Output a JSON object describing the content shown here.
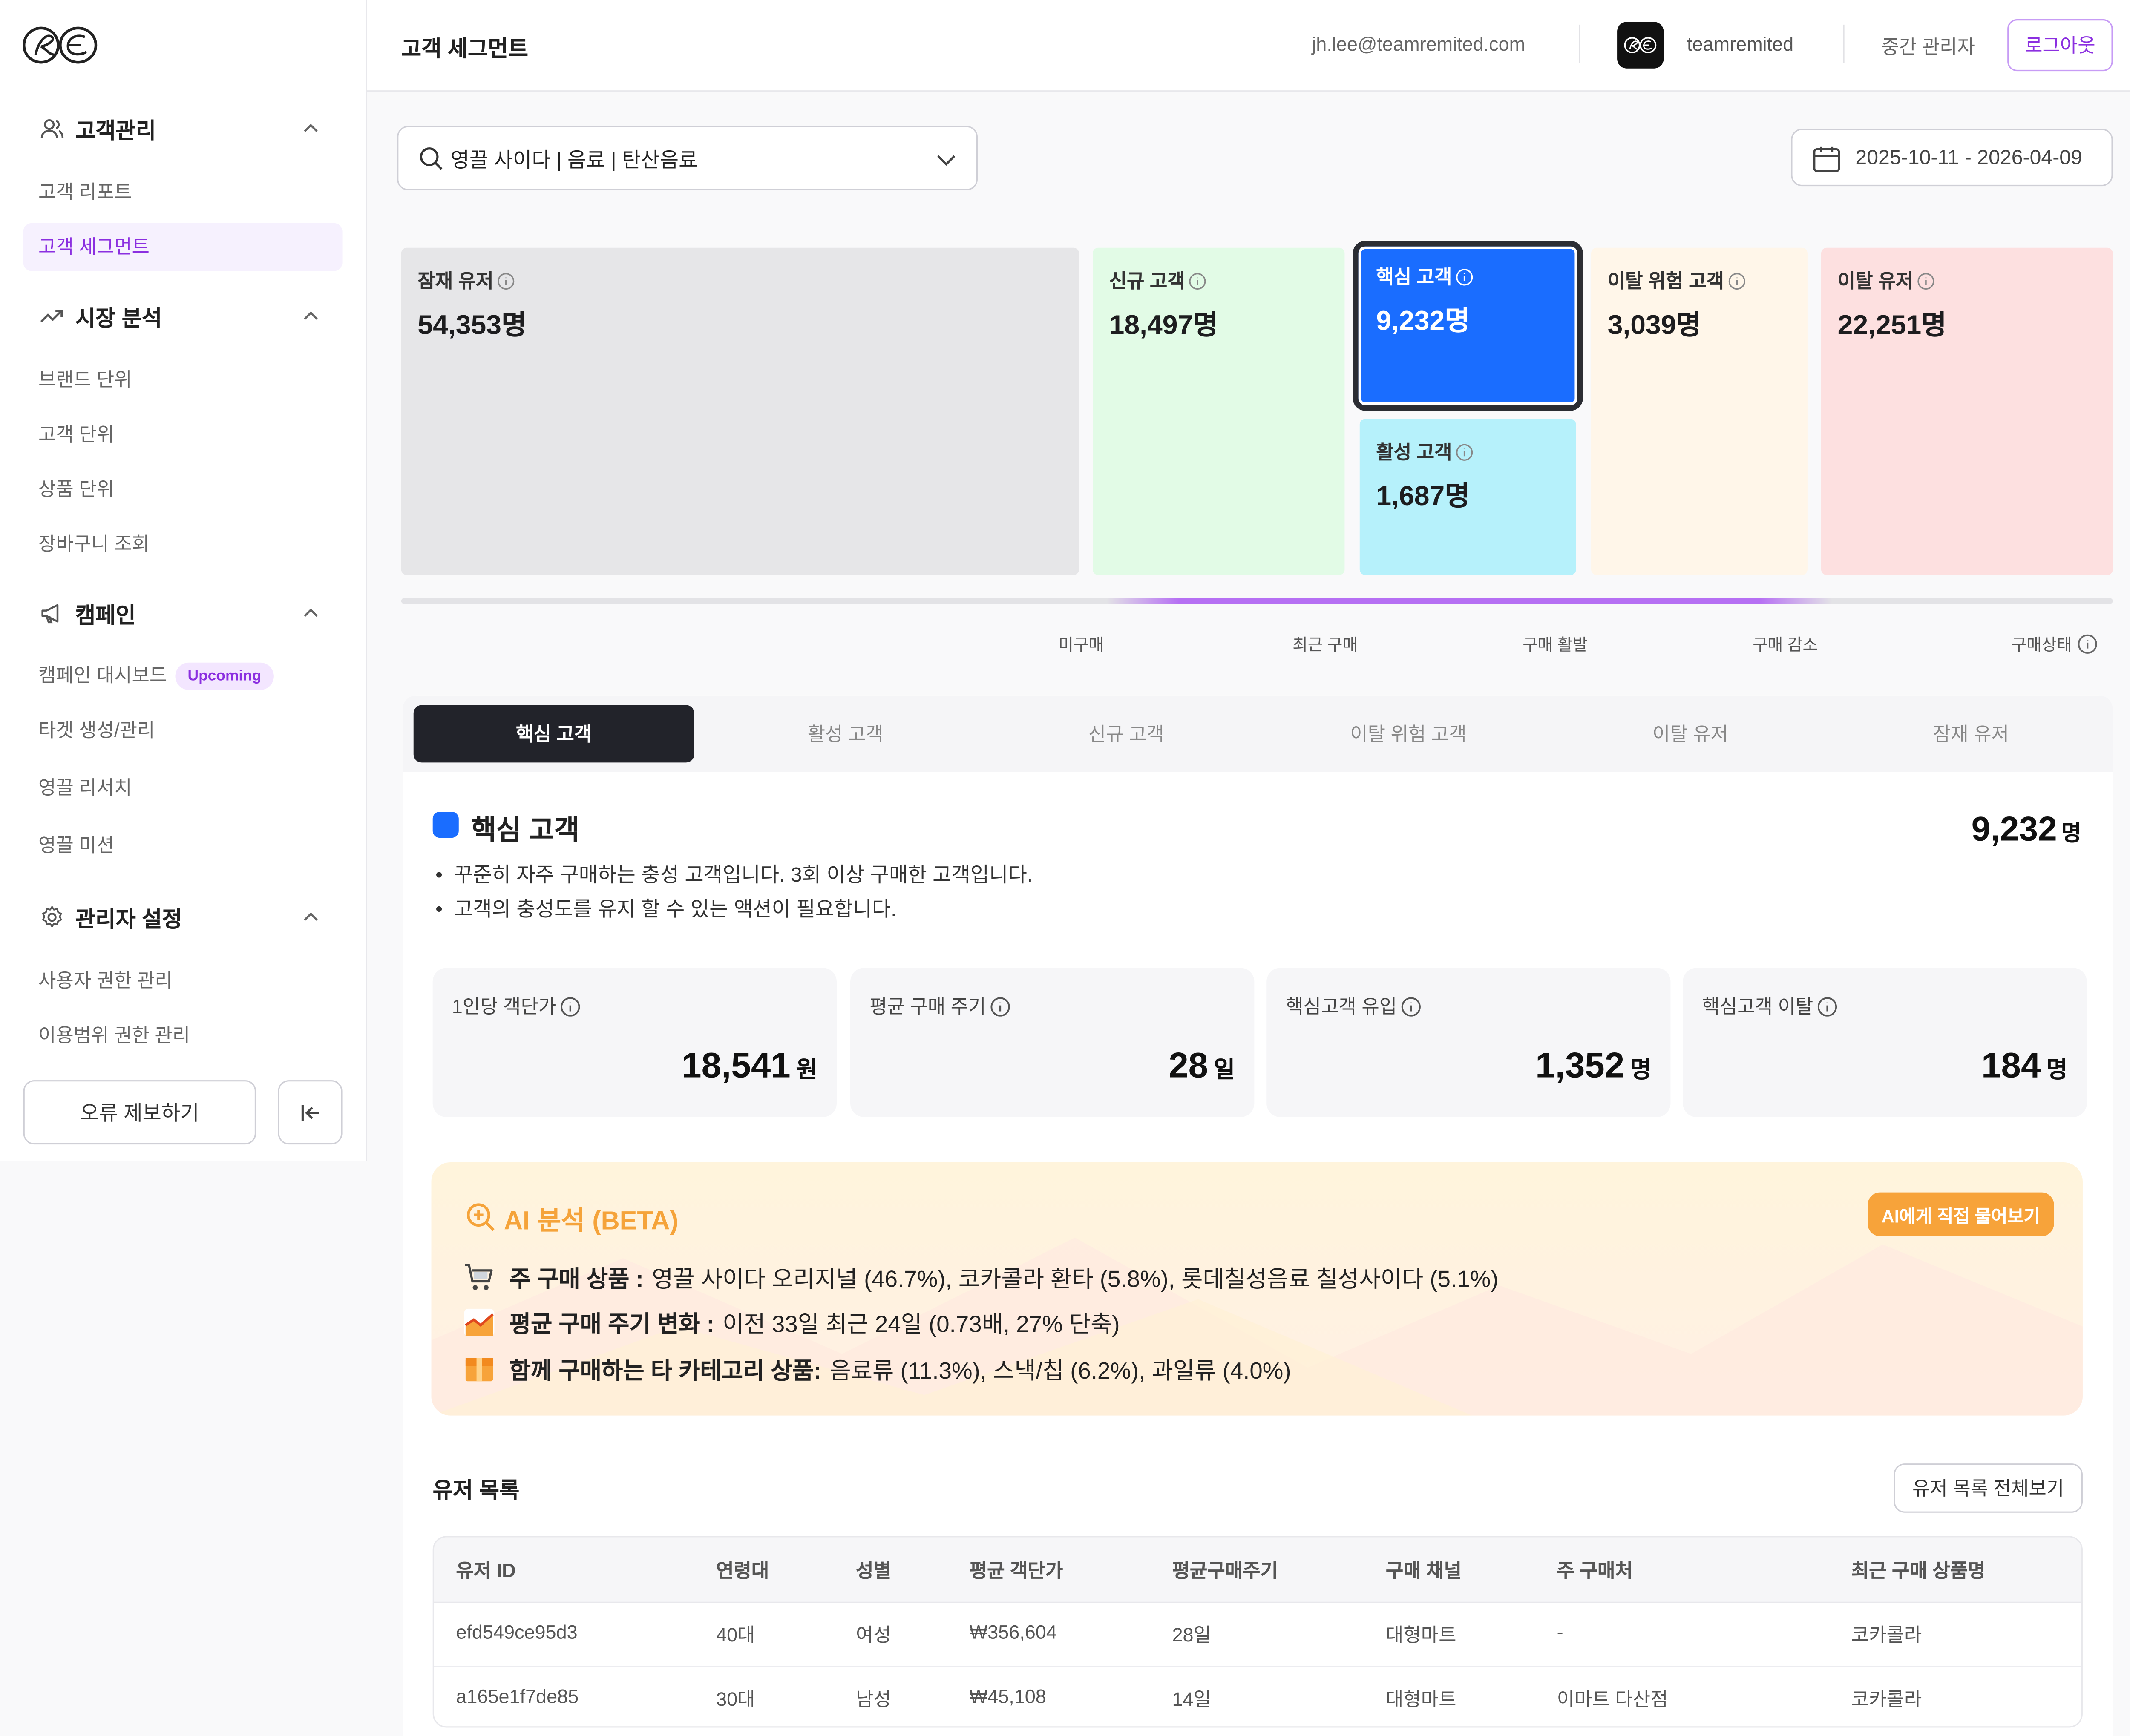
{
  "sidebar": {
    "sections": [
      {
        "title": "고객관리",
        "items": [
          "고객 리포트",
          "고객 세그먼트"
        ]
      },
      {
        "title": "시장 분석",
        "items": [
          "브랜드 단위",
          "고객 단위",
          "상품 단위",
          "장바구니 조회"
        ]
      },
      {
        "title": "캠페인",
        "items": [
          "캠페인 대시보드",
          "타겟 생성/관리",
          "영끌 리서치",
          "영끌 미션"
        ]
      },
      {
        "title": "관리자 설정",
        "items": [
          "사용자 권한 관리",
          "이용범위 권한 관리"
        ]
      }
    ],
    "badge": "Upcoming",
    "report_button": "오류 제보하기"
  },
  "header": {
    "title": "고객 세그먼트",
    "email": "jh.lee@teamremited.com",
    "org": "teamremited",
    "role": "중간 관리자",
    "logout": "로그아웃"
  },
  "filter": {
    "category": "영끌 사이다 | 음료 | 탄산음료",
    "date_range": "2025-10-11 - 2026-04-09"
  },
  "segments": {
    "potential": {
      "label": "잠재 유저",
      "value": "54,353명"
    },
    "new": {
      "label": "신규 고객",
      "value": "18,497명"
    },
    "core": {
      "label": "핵심 고객",
      "value": "9,232명"
    },
    "active": {
      "label": "활성 고객",
      "value": "1,687명"
    },
    "at_risk": {
      "label": "이탈 위험 고객",
      "value": "3,039명"
    },
    "churned": {
      "label": "이탈 유저",
      "value": "22,251명"
    }
  },
  "stages": [
    "미구매",
    "최근 구매",
    "구매 활발",
    "구매 감소",
    "구매상태"
  ],
  "tabs": [
    "핵심 고객",
    "활성 고객",
    "신규 고객",
    "이탈 위험 고객",
    "이탈 유저",
    "잠재 유저"
  ],
  "detail": {
    "title": "핵심 고객",
    "count": "9,232",
    "count_unit": "명",
    "bullets": [
      "꾸준히 자주 구매하는 충성 고객입니다. 3회 이상 구매한 고객입니다.",
      "고객의 충성도를 유지 할 수 있는 액션이 필요합니다."
    ],
    "metrics": [
      {
        "label": "1인당 객단가",
        "value": "18,541",
        "unit": "원"
      },
      {
        "label": "평균 구매 주기",
        "value": "28",
        "unit": "일"
      },
      {
        "label": "핵심고객 유입",
        "value": "1,352",
        "unit": "명"
      },
      {
        "label": "핵심고객 이탈",
        "value": "184",
        "unit": "명"
      }
    ]
  },
  "ai": {
    "title": "AI 분석 (BETA)",
    "ask_button": "AI에게 직접 물어보기",
    "lines": [
      {
        "label": "주 구매 상품 :",
        "text": "영끌 사이다 오리지널 (46.7%), 코카콜라 환타 (5.8%), 롯데칠성음료 칠성사이다 (5.1%)"
      },
      {
        "label": "평균 구매 주기 변화 :",
        "text": "이전 33일 최근 24일 (0.73배, 27% 단축)"
      },
      {
        "label": "함께 구매하는 타 카테고리 상품:",
        "text": "음료류 (11.3%), 스낵/칩 (6.2%), 과일류 (4.0%)"
      }
    ]
  },
  "users": {
    "title": "유저 목록",
    "view_all": "유저 목록 전체보기",
    "columns": [
      "유저 ID",
      "연령대",
      "성별",
      "평균 객단가",
      "평균구매주기",
      "구매 채널",
      "주 구매처",
      "최근 구매 상품명"
    ],
    "rows": [
      [
        "efd549ce95d3",
        "40대",
        "여성",
        "₩356,604",
        "28일",
        "대형마트",
        "-",
        "코카콜라"
      ],
      [
        "a165e1f7de85",
        "30대",
        "남성",
        "₩45,108",
        "14일",
        "대형마트",
        "이마트 다산점",
        "코카콜라"
      ]
    ]
  },
  "colors": {
    "accent": "#8b2fe0",
    "core": "#1a6dff",
    "active": "#b6f1fb",
    "new": "#e2fbe6",
    "at_risk": "#fff6e9",
    "churned": "#fde0e0",
    "potential": "#e6e6e8",
    "ai_orange": "#f5a33a"
  }
}
